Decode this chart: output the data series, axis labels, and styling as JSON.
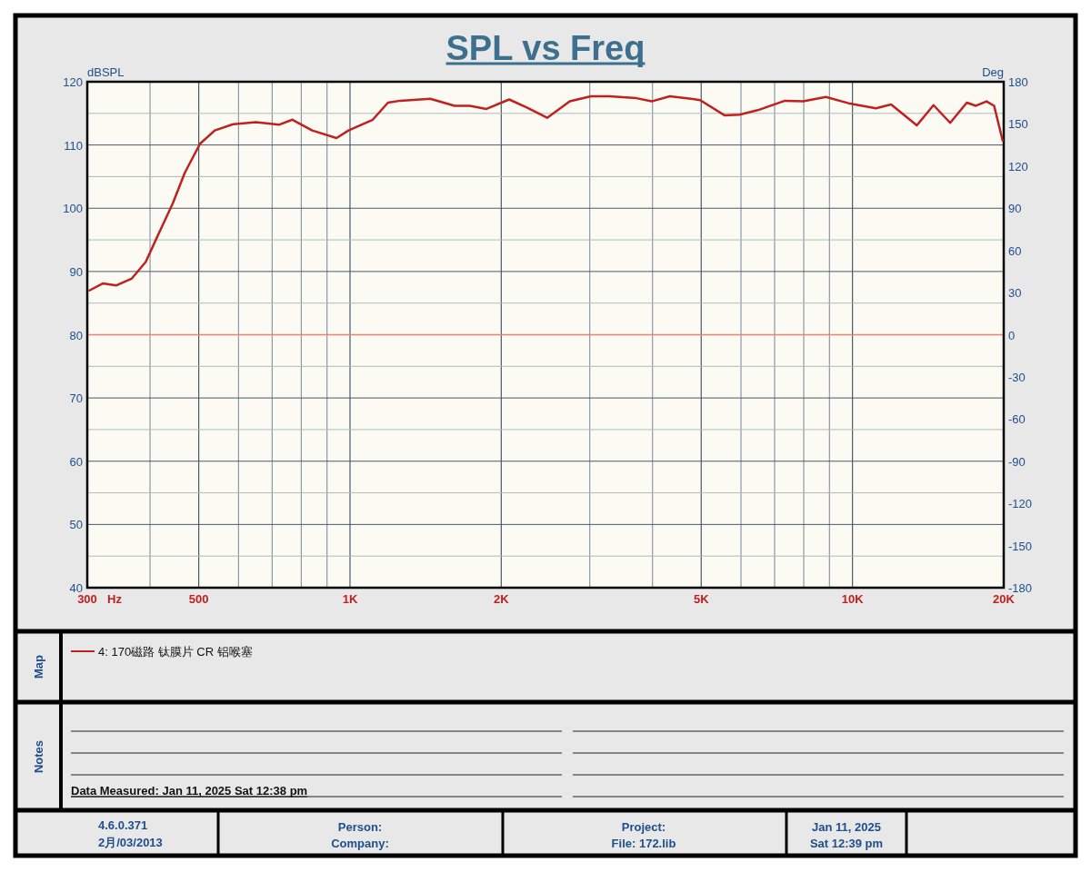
{
  "chart_data": {
    "type": "line",
    "title": "SPL vs Freq",
    "xlabel": "Hz",
    "ylabel": "dBSPL",
    "y2label": "Deg",
    "log": "x",
    "grid": true,
    "legend": "bottom",
    "xlim": [
      300,
      20000
    ],
    "xticks": [
      300,
      {
        "value": 400,
        "label": null
      },
      500,
      {
        "value": 600,
        "label": null
      },
      {
        "value": 700,
        "label": null
      },
      {
        "value": 800,
        "label": null
      },
      {
        "value": 900,
        "label": null
      },
      {
        "value": 1000,
        "label": "1K"
      },
      {
        "value": 2000,
        "label": "2K"
      },
      {
        "value": 3000,
        "label": null
      },
      {
        "value": 4000,
        "label": null
      },
      {
        "value": 5000,
        "label": "5K"
      },
      {
        "value": 6000,
        "label": null
      },
      {
        "value": 7000,
        "label": null
      },
      {
        "value": 8000,
        "label": null
      },
      {
        "value": 9000,
        "label": null
      },
      {
        "value": 10000,
        "label": "10K"
      },
      {
        "value": 20000,
        "label": "20K"
      }
    ],
    "ylim": [
      40,
      120
    ],
    "yticks": [
      40,
      {
        "value": 45,
        "label": null
      },
      50,
      {
        "value": 55,
        "label": null
      },
      60,
      {
        "value": 65,
        "label": null
      },
      70,
      {
        "value": 75,
        "label": null
      },
      80,
      {
        "value": 85,
        "label": null
      },
      90,
      {
        "value": 95,
        "label": null
      },
      100,
      {
        "value": 105,
        "label": null
      },
      110,
      {
        "value": 115,
        "label": null
      },
      120
    ],
    "y2lim": [
      -180,
      180
    ],
    "y2ticks": [
      -180,
      -150,
      -120,
      -90,
      -60,
      -30,
      0,
      30,
      60,
      90,
      120,
      150,
      180
    ],
    "ref_lines": [
      {
        "axis": "y2",
        "value": 0,
        "color": "#f08070"
      }
    ],
    "series": [
      {
        "name": "4: 170磁路  钛膜片  CR  铝喉塞",
        "color": "#c0211f",
        "x": [
          303,
          322,
          343,
          368,
          392,
          414,
          444,
          469,
          503,
          538,
          586,
          650,
          722,
          768,
          841,
          940,
          993,
          1110,
          1190,
          1258,
          1445,
          1615,
          1731,
          1869,
          2074,
          2254,
          2468,
          2738,
          3017,
          3280,
          3717,
          3984,
          4329,
          4771,
          4976,
          5562,
          5959,
          6477,
          7339,
          7979,
          8852,
          9824,
          11136,
          11937,
          13430,
          14498,
          15650,
          16886,
          17606,
          18486,
          19140,
          19900
        ],
        "values": [
          87.0,
          88.1,
          87.8,
          88.9,
          91.5,
          95.6,
          100.8,
          105.6,
          110.2,
          112.3,
          113.3,
          113.6,
          113.2,
          114.0,
          112.3,
          111.1,
          112.3,
          114.0,
          116.7,
          117.0,
          117.3,
          116.2,
          116.2,
          115.7,
          117.2,
          115.9,
          114.3,
          116.9,
          117.7,
          117.7,
          117.4,
          116.9,
          117.7,
          117.3,
          117.1,
          114.7,
          114.8,
          115.5,
          117.0,
          116.9,
          117.6,
          116.6,
          115.8,
          116.4,
          113.1,
          116.3,
          113.5,
          116.7,
          116.2,
          116.9,
          116.2,
          110.7
        ]
      }
    ],
    "annotations": [
      "Map",
      "Notes",
      "Data Measured: Jan 11, 2025  Sat 12:38 pm",
      "4.6.0.371",
      "2月/03/2013",
      "Person:",
      "Company:",
      "Project:",
      "File: 172.lib",
      "Jan 11, 2025",
      "Sat 12:39 pm"
    ]
  }
}
